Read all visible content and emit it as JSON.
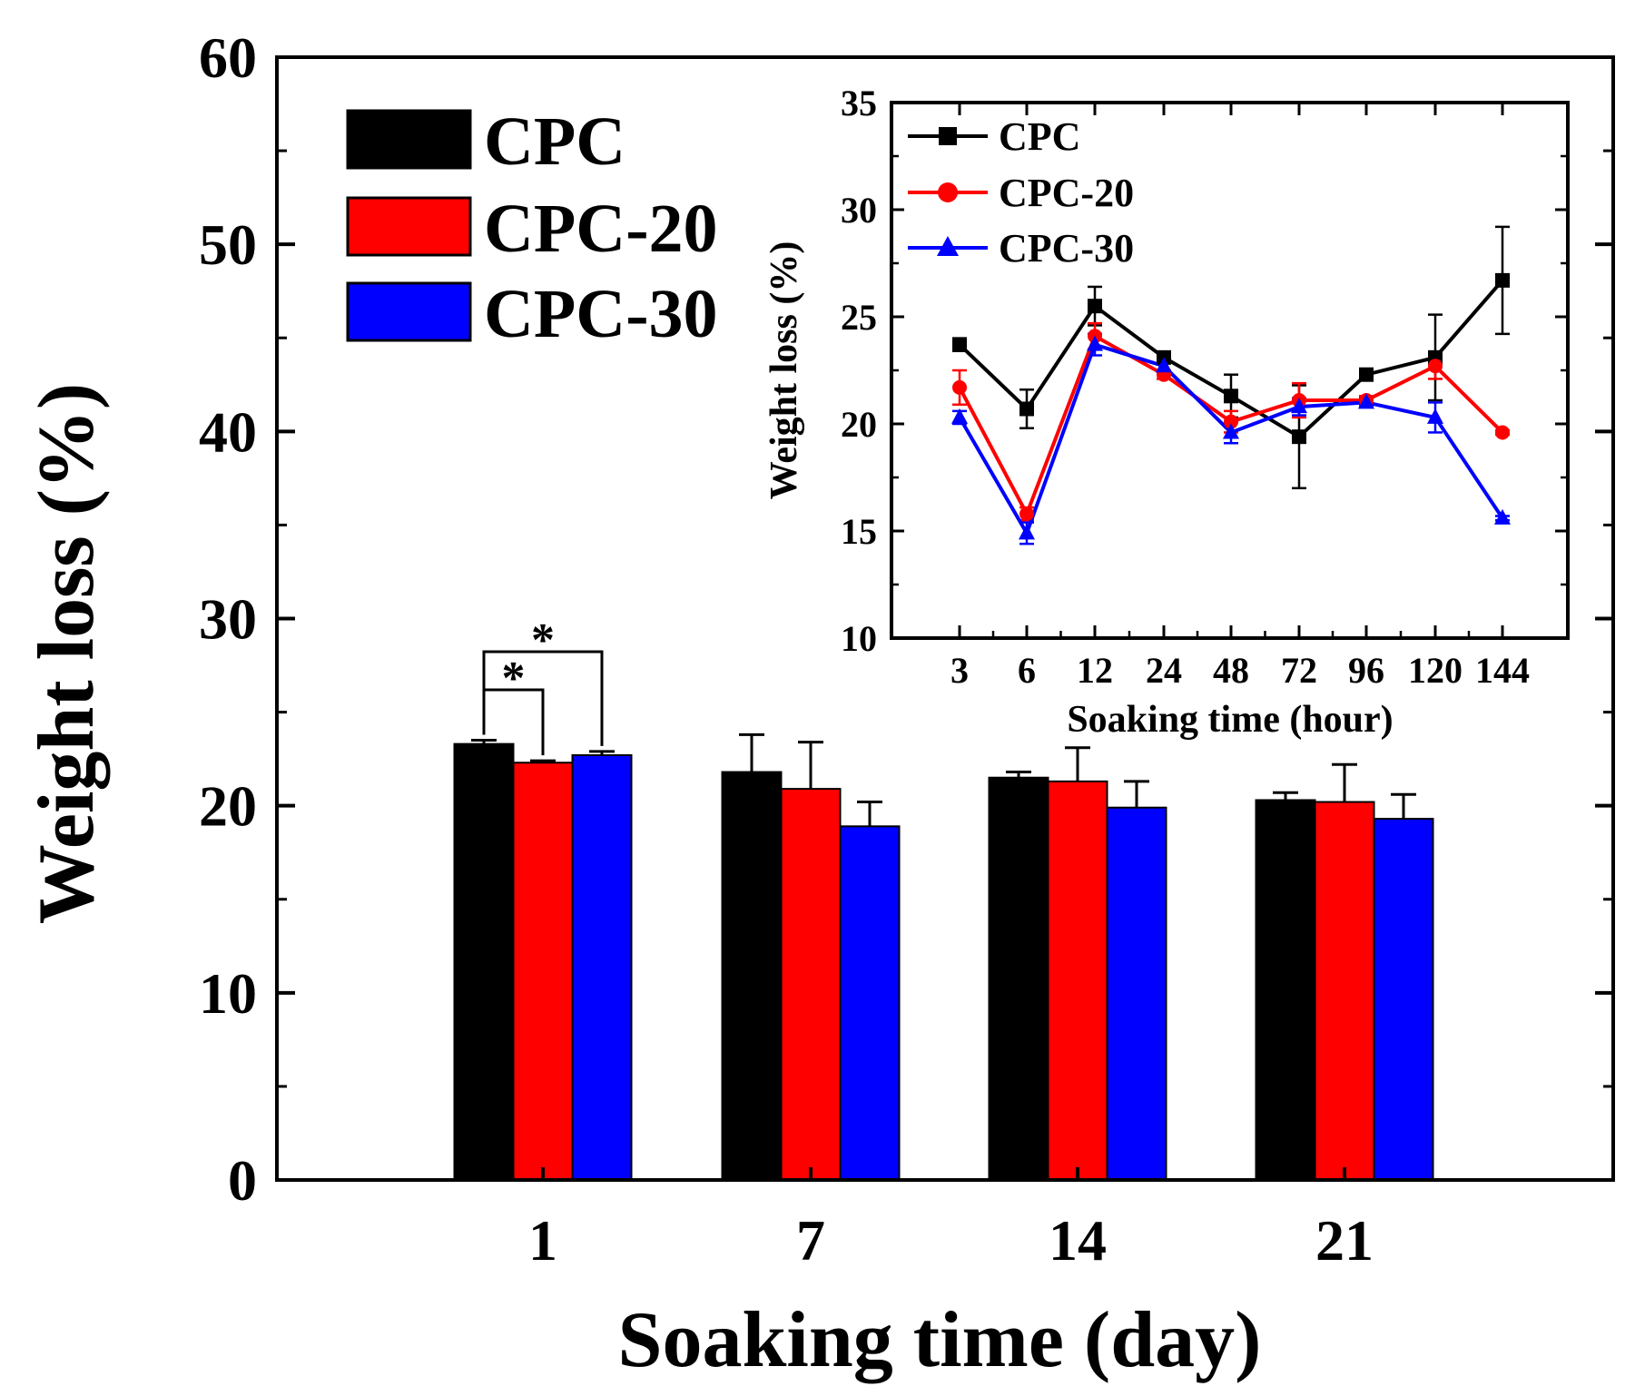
{
  "chart_data": [
    {
      "id": "main",
      "type": "bar",
      "title": "",
      "xlabel": "Soaking time (day)",
      "ylabel": "Weight loss (%)",
      "categories": [
        "1",
        "7",
        "14",
        "21"
      ],
      "ylim": [
        0,
        60
      ],
      "yticks": [
        0,
        10,
        20,
        30,
        40,
        50,
        60
      ],
      "legend_position": "top-left",
      "grid": false,
      "series": [
        {
          "name": "CPC",
          "color": "#000000",
          "values": [
            23.3,
            21.8,
            21.5,
            20.3
          ],
          "errors": [
            0.2,
            2.0,
            0.3,
            0.4
          ]
        },
        {
          "name": "CPC-20",
          "color": "#ff0000",
          "values": [
            22.3,
            20.9,
            21.3,
            20.2
          ],
          "errors": [
            0.1,
            2.5,
            1.8,
            2.0
          ]
        },
        {
          "name": "CPC-30",
          "color": "#0000ff",
          "values": [
            22.7,
            18.9,
            19.9,
            19.3
          ],
          "errors": [
            0.2,
            1.3,
            1.4,
            1.3
          ]
        }
      ],
      "annotations": [
        {
          "text": "*",
          "from_series": "CPC",
          "to_series": "CPC-20",
          "category": "1"
        },
        {
          "text": "*",
          "from_series": "CPC",
          "to_series": "CPC-30",
          "category": "1"
        }
      ]
    },
    {
      "id": "inset",
      "type": "line",
      "title": "",
      "xlabel": "Soaking time (hour)",
      "ylabel": "Weight loss (%)",
      "categories": [
        "3",
        "6",
        "12",
        "24",
        "48",
        "72",
        "96",
        "120",
        "144"
      ],
      "ylim": [
        10,
        35
      ],
      "yticks": [
        10,
        15,
        20,
        25,
        30,
        35
      ],
      "legend_position": "top-left",
      "grid": false,
      "series": [
        {
          "name": "CPC",
          "color": "#000000",
          "marker": "square",
          "values": [
            23.7,
            20.7,
            25.5,
            23.1,
            21.3,
            19.4,
            22.3,
            23.1,
            26.7
          ],
          "errors": [
            0.3,
            0.9,
            0.9,
            0.2,
            1.0,
            2.4,
            0.2,
            2.0,
            2.5
          ]
        },
        {
          "name": "CPC-20",
          "color": "#ff0000",
          "marker": "circle",
          "values": [
            21.7,
            15.8,
            24.1,
            22.3,
            20.1,
            21.1,
            21.1,
            22.7,
            19.6
          ],
          "errors": [
            0.8,
            0.3,
            0.6,
            0.2,
            0.5,
            0.8,
            0.2,
            0.6,
            0.1
          ]
        },
        {
          "name": "CPC-30",
          "color": "#0000ff",
          "marker": "triangle",
          "values": [
            20.3,
            14.9,
            23.7,
            22.7,
            19.6,
            20.8,
            21.0,
            20.3,
            15.6
          ],
          "errors": [
            0.3,
            0.5,
            0.5,
            0.3,
            0.5,
            0.4,
            0.2,
            0.7,
            0.1
          ]
        }
      ]
    }
  ]
}
